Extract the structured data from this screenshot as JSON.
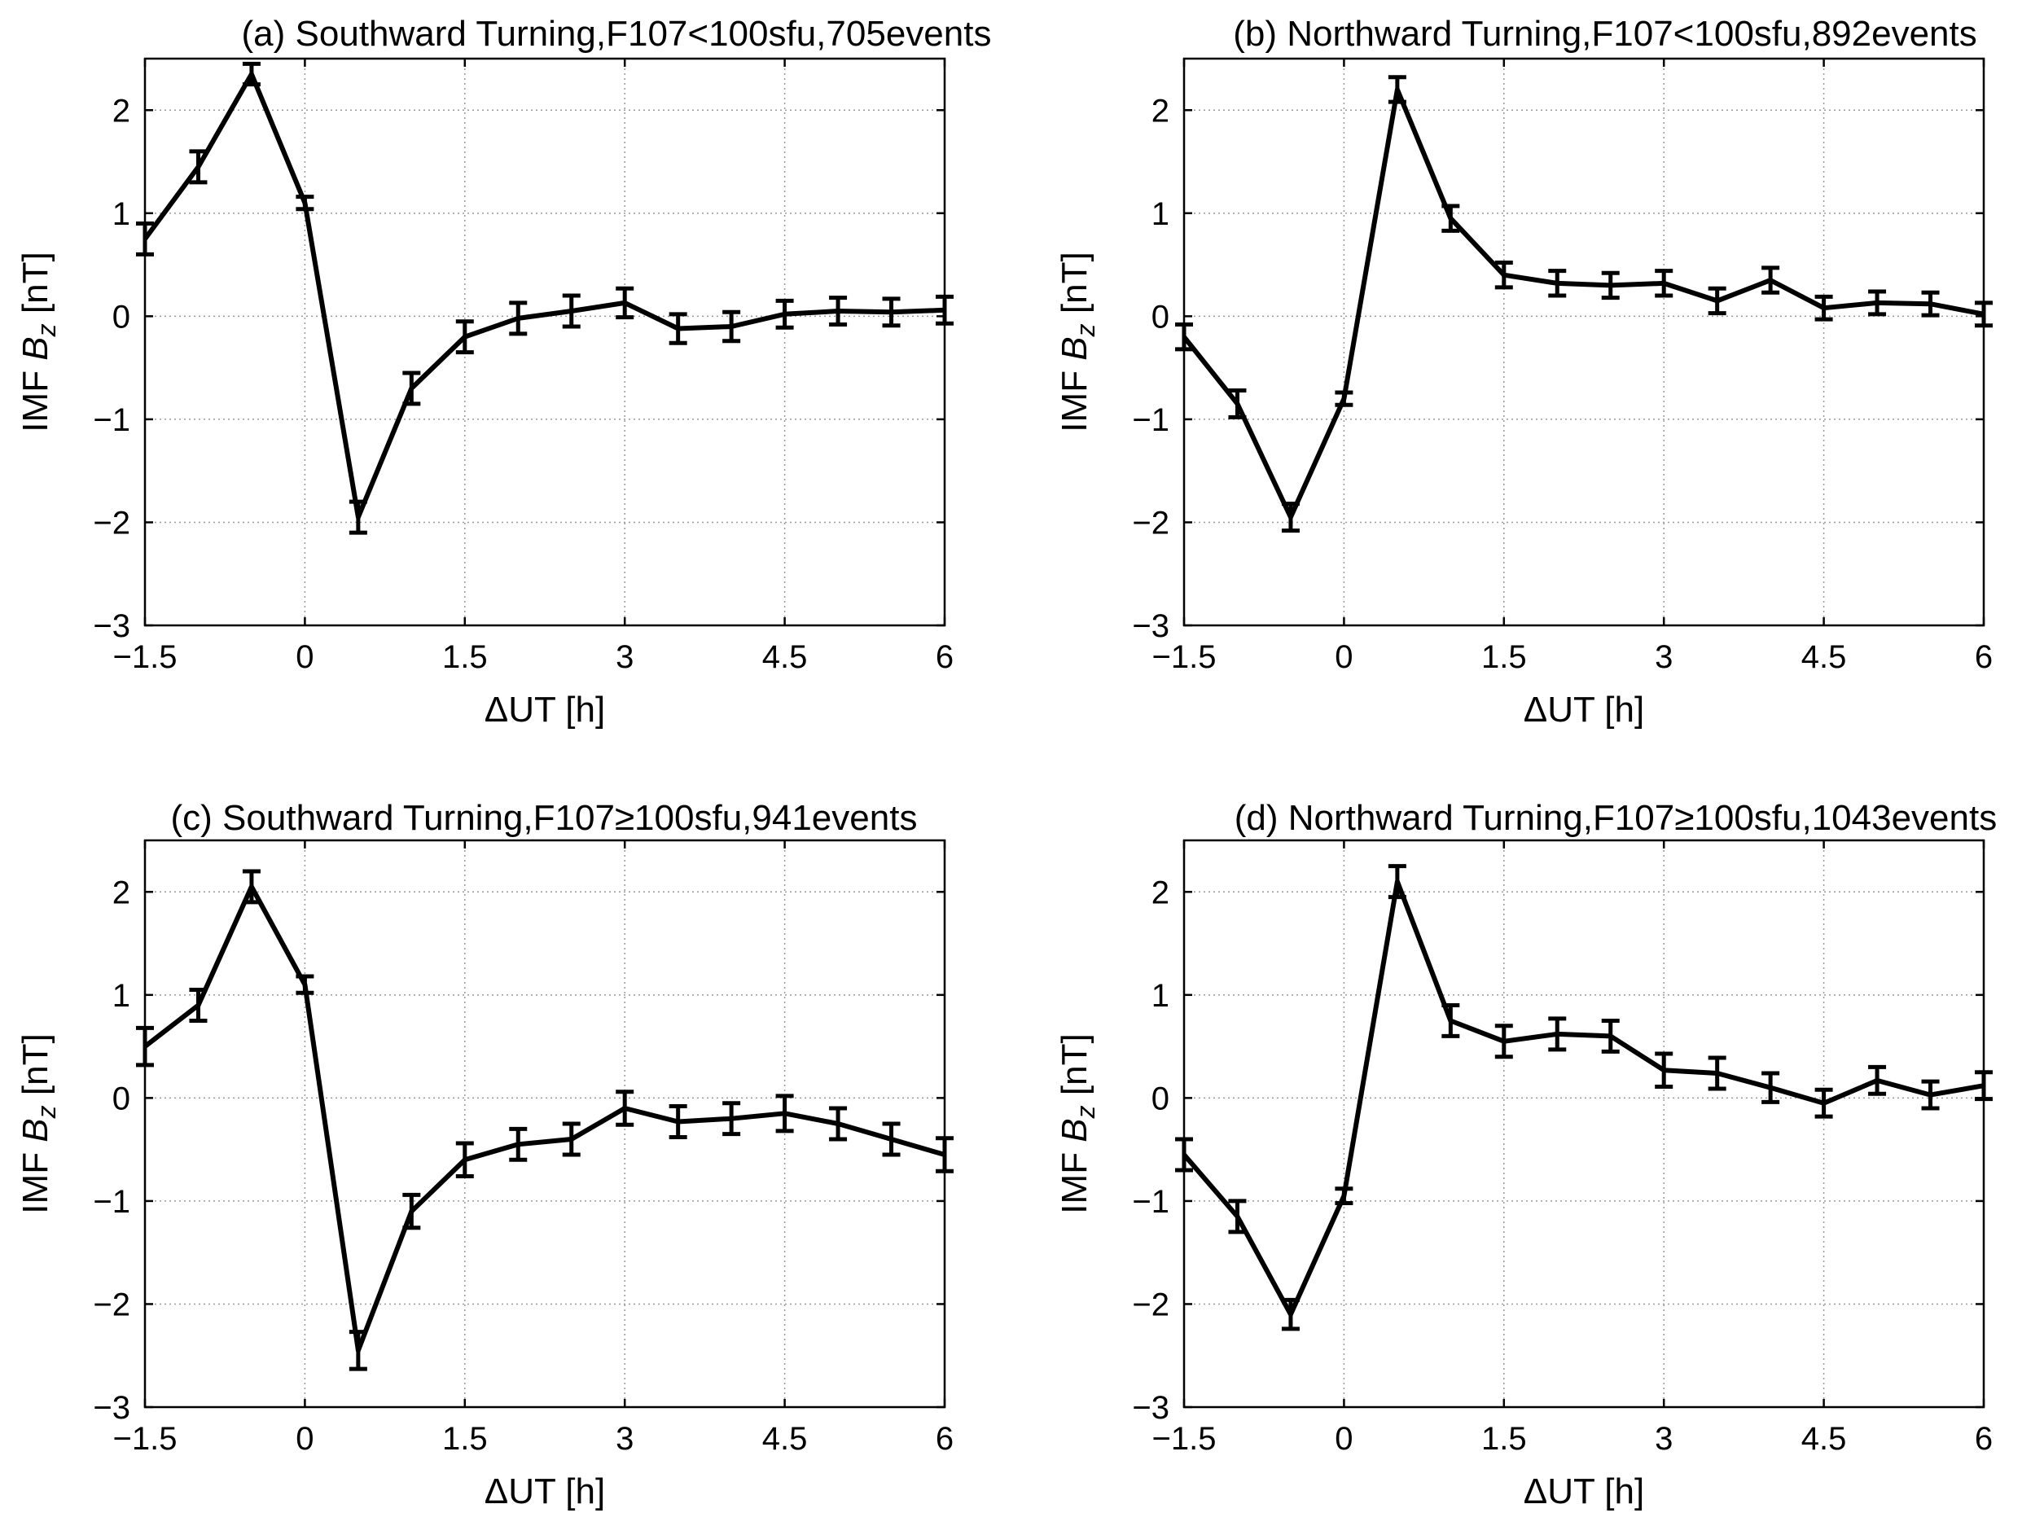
{
  "chart_data": [
    {
      "type": "line",
      "title": "(a) Southward Turning,F107<100sfu,705events",
      "xlabel": "ΔUT [h]",
      "ylabel_prefix": "IMF ",
      "ylabel_var": "B",
      "ylabel_sub": "z",
      "ylabel_unit": " [nT]",
      "xlim": [
        -1.5,
        6
      ],
      "ylim": [
        -3,
        2.5
      ],
      "xticks": [
        -1.5,
        0,
        1.5,
        3,
        4.5,
        6
      ],
      "xtick_labels": [
        "−1.5",
        "0",
        "1.5",
        "3",
        "4.5",
        "6"
      ],
      "yticks": [
        -3,
        -2,
        -1,
        0,
        1,
        2
      ],
      "ytick_labels": [
        "−3",
        "−2",
        "−1",
        "0",
        "1",
        "2"
      ],
      "grid": true,
      "x": [
        -1.5,
        -1,
        -0.5,
        0,
        0.5,
        1,
        1.5,
        2,
        2.5,
        3,
        3.5,
        4,
        4.5,
        5,
        5.5,
        6
      ],
      "values": [
        0.75,
        1.45,
        2.35,
        1.1,
        -1.95,
        -0.7,
        -0.2,
        -0.02,
        0.05,
        0.13,
        -0.12,
        -0.1,
        0.02,
        0.05,
        0.04,
        0.06
      ],
      "errors": [
        0.15,
        0.15,
        0.1,
        0.06,
        0.15,
        0.15,
        0.15,
        0.15,
        0.15,
        0.14,
        0.14,
        0.14,
        0.13,
        0.13,
        0.13,
        0.13
      ]
    },
    {
      "type": "line",
      "title": "(b) Northward Turning,F107<100sfu,892events",
      "xlabel": "ΔUT [h]",
      "ylabel_prefix": "IMF ",
      "ylabel_var": "B",
      "ylabel_sub": "z",
      "ylabel_unit": " [nT]",
      "xlim": [
        -1.5,
        6
      ],
      "ylim": [
        -3,
        2.5
      ],
      "xticks": [
        -1.5,
        0,
        1.5,
        3,
        4.5,
        6
      ],
      "xtick_labels": [
        "−1.5",
        "0",
        "1.5",
        "3",
        "4.5",
        "6"
      ],
      "yticks": [
        -3,
        -2,
        -1,
        0,
        1,
        2
      ],
      "ytick_labels": [
        "−3",
        "−2",
        "−1",
        "0",
        "1",
        "2"
      ],
      "grid": true,
      "x": [
        -1.5,
        -1,
        -0.5,
        0,
        0.5,
        1,
        1.5,
        2,
        2.5,
        3,
        3.5,
        4,
        4.5,
        5,
        5.5,
        6
      ],
      "values": [
        -0.2,
        -0.85,
        -1.95,
        -0.8,
        2.2,
        0.95,
        0.4,
        0.32,
        0.3,
        0.32,
        0.15,
        0.35,
        0.08,
        0.13,
        0.12,
        0.02
      ],
      "errors": [
        0.12,
        0.13,
        0.13,
        0.06,
        0.12,
        0.12,
        0.12,
        0.12,
        0.12,
        0.12,
        0.12,
        0.12,
        0.11,
        0.11,
        0.11,
        0.11
      ]
    },
    {
      "type": "line",
      "title": "(c) Southward Turning,F107≥100sfu,941events",
      "xlabel": "ΔUT [h]",
      "ylabel_prefix": "IMF ",
      "ylabel_var": "B",
      "ylabel_sub": "z",
      "ylabel_unit": " [nT]",
      "xlim": [
        -1.5,
        6
      ],
      "ylim": [
        -3,
        2.5
      ],
      "xticks": [
        -1.5,
        0,
        1.5,
        3,
        4.5,
        6
      ],
      "xtick_labels": [
        "−1.5",
        "0",
        "1.5",
        "3",
        "4.5",
        "6"
      ],
      "yticks": [
        -3,
        -2,
        -1,
        0,
        1,
        2
      ],
      "ytick_labels": [
        "−3",
        "−2",
        "−1",
        "0",
        "1",
        "2"
      ],
      "grid": true,
      "x": [
        -1.5,
        -1,
        -0.5,
        0,
        0.5,
        1,
        1.5,
        2,
        2.5,
        3,
        3.5,
        4,
        4.5,
        5,
        5.5,
        6
      ],
      "values": [
        0.5,
        0.9,
        2.05,
        1.1,
        -2.45,
        -1.1,
        -0.6,
        -0.45,
        -0.4,
        -0.1,
        -0.23,
        -0.2,
        -0.15,
        -0.25,
        -0.4,
        -0.55
      ],
      "errors": [
        0.18,
        0.15,
        0.15,
        0.08,
        0.18,
        0.16,
        0.16,
        0.15,
        0.15,
        0.16,
        0.15,
        0.15,
        0.17,
        0.15,
        0.15,
        0.16
      ]
    },
    {
      "type": "line",
      "title": "(d) Northward Turning,F107≥100sfu,1043events",
      "xlabel": "ΔUT [h]",
      "ylabel_prefix": "IMF ",
      "ylabel_var": "B",
      "ylabel_sub": "z",
      "ylabel_unit": " [nT]",
      "xlim": [
        -1.5,
        6
      ],
      "ylim": [
        -3,
        2.5
      ],
      "xticks": [
        -1.5,
        0,
        1.5,
        3,
        4.5,
        6
      ],
      "xtick_labels": [
        "−1.5",
        "0",
        "1.5",
        "3",
        "4.5",
        "6"
      ],
      "yticks": [
        -3,
        -2,
        -1,
        0,
        1,
        2
      ],
      "ytick_labels": [
        "−3",
        "−2",
        "−1",
        "0",
        "1",
        "2"
      ],
      "grid": true,
      "x": [
        -1.5,
        -1,
        -0.5,
        0,
        0.5,
        1,
        1.5,
        2,
        2.5,
        3,
        3.5,
        4,
        4.5,
        5,
        5.5,
        6
      ],
      "values": [
        -0.55,
        -1.15,
        -2.1,
        -0.95,
        2.1,
        0.75,
        0.55,
        0.62,
        0.6,
        0.27,
        0.24,
        0.1,
        -0.05,
        0.17,
        0.03,
        0.12
      ],
      "errors": [
        0.15,
        0.15,
        0.14,
        0.07,
        0.15,
        0.15,
        0.15,
        0.15,
        0.15,
        0.16,
        0.15,
        0.14,
        0.13,
        0.13,
        0.13,
        0.13
      ]
    }
  ]
}
